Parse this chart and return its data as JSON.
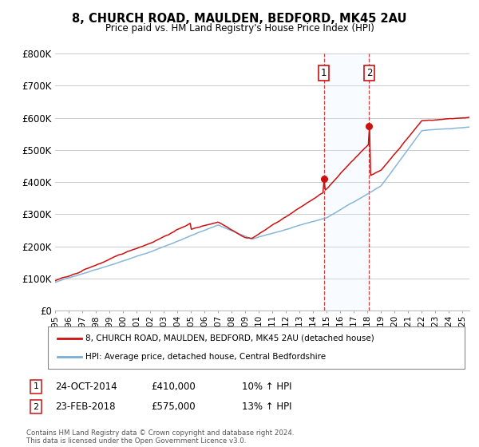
{
  "title": "8, CHURCH ROAD, MAULDEN, BEDFORD, MK45 2AU",
  "subtitle": "Price paid vs. HM Land Registry's House Price Index (HPI)",
  "ylim": [
    0,
    800000
  ],
  "yticks": [
    0,
    100000,
    200000,
    300000,
    400000,
    500000,
    600000,
    700000,
    800000
  ],
  "ytick_labels": [
    "£0",
    "£100K",
    "£200K",
    "£300K",
    "£400K",
    "£500K",
    "£600K",
    "£700K",
    "£800K"
  ],
  "sale1_year": 2014.79,
  "sale1_price": 410000,
  "sale2_year": 2018.12,
  "sale2_price": 575000,
  "hpi_color": "#7bafd4",
  "price_color": "#cc1111",
  "shade_color": "#ddeeff",
  "vline_color": "#cc2222",
  "background_color": "#ffffff",
  "grid_color": "#cccccc",
  "legend1": "8, CHURCH ROAD, MAULDEN, BEDFORD, MK45 2AU (detached house)",
  "legend2": "HPI: Average price, detached house, Central Bedfordshire",
  "note1_label": "1",
  "note1_date": "24-OCT-2014",
  "note1_price": "£410,000",
  "note1_hpi": "10% ↑ HPI",
  "note2_label": "2",
  "note2_date": "23-FEB-2018",
  "note2_price": "£575,000",
  "note2_hpi": "13% ↑ HPI",
  "footnote": "Contains HM Land Registry data © Crown copyright and database right 2024.\nThis data is licensed under the Open Government Licence v3.0."
}
